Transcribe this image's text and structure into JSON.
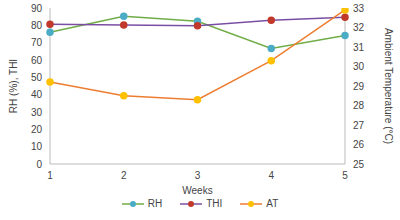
{
  "chart_data": {
    "type": "line",
    "x_label": "Weeks",
    "y_label": "RH (%), THI",
    "y2_label": "Ambient Temperature (°C)",
    "categories": [
      "1",
      "2",
      "3",
      "4",
      "5"
    ],
    "series": [
      {
        "name": "RH",
        "color": "#70ad47",
        "values": [
          76,
          85.3,
          82.4,
          66.6,
          74.2
        ],
        "marker": "circle"
      },
      {
        "name": "THI",
        "color": "#7a4fa3",
        "values": [
          80.6,
          80.2,
          79.8,
          83,
          84.6
        ],
        "marker": "circle"
      },
      {
        "name": "AT",
        "color": "#ed7d31",
        "values": [
          29.2,
          28.5,
          28.3,
          30.3,
          32.9
        ],
        "marker": "circle",
        "axis": "y2"
      }
    ],
    "ylim": [
      0,
      90
    ],
    "yticks": [
      0,
      10,
      20,
      30,
      40,
      50,
      60,
      70,
      80,
      90
    ],
    "y2lim": [
      25,
      33
    ],
    "y2ticks": [
      25,
      26,
      27,
      28,
      29,
      30,
      31,
      32,
      33
    ],
    "grid": false,
    "legend": "bottom"
  }
}
